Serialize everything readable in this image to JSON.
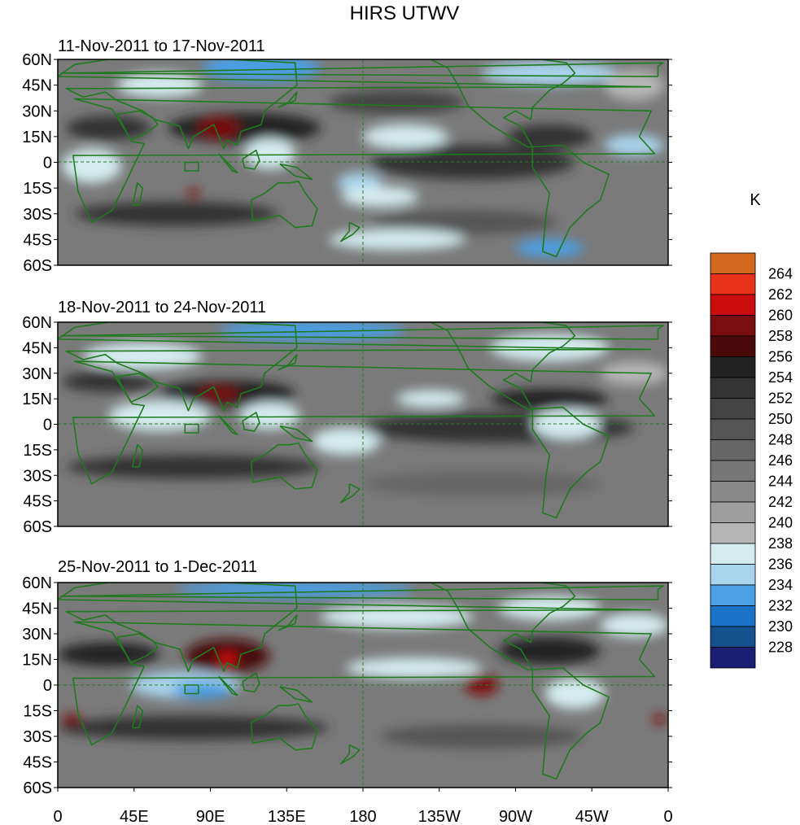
{
  "chart_data": {
    "type": "heatmap",
    "title": "HIRS UTWV",
    "units_label": "K",
    "x_ticks": [
      "0",
      "45E",
      "90E",
      "135E",
      "180",
      "135W",
      "90W",
      "45W",
      "0"
    ],
    "y_ticks": [
      "60N",
      "45N",
      "30N",
      "15N",
      "0",
      "15S",
      "30S",
      "45S",
      "60S"
    ],
    "xlim": [
      0,
      360
    ],
    "ylim": [
      -60,
      60
    ],
    "colorbar": {
      "levels": [
        "228",
        "230",
        "232",
        "234",
        "236",
        "238",
        "240",
        "242",
        "244",
        "246",
        "248",
        "250",
        "252",
        "254",
        "256",
        "258",
        "260",
        "262",
        "264"
      ],
      "colors": [
        "#1a1f73",
        "#15508f",
        "#1a73c6",
        "#4a9fe5",
        "#a8d4ec",
        "#d4ecef",
        "#b5b5b5",
        "#9e9e9e",
        "#888888",
        "#777777",
        "#666666",
        "#555555",
        "#444444",
        "#333333",
        "#222222",
        "#4a0a0a",
        "#7a0d0d",
        "#cc0d0d",
        "#e8321a",
        "#d2691e"
      ]
    },
    "panels": [
      {
        "label": "11-Nov-2011 to 17-Nov-2011",
        "features": [
          {
            "lon": 120,
            "lat": 55,
            "w": 70,
            "h": 16,
            "value": 232
          },
          {
            "lon": 290,
            "lat": 52,
            "w": 80,
            "h": 14,
            "value": 235
          },
          {
            "lon": 110,
            "lat": 20,
            "w": 90,
            "h": 18,
            "value": 254
          },
          {
            "lon": 95,
            "lat": 20,
            "w": 25,
            "h": 12,
            "value": 258
          },
          {
            "lon": 30,
            "lat": 20,
            "w": 50,
            "h": 14,
            "value": 252
          },
          {
            "lon": 20,
            "lat": -2,
            "w": 35,
            "h": 20,
            "value": 237
          },
          {
            "lon": 125,
            "lat": 5,
            "w": 30,
            "h": 18,
            "value": 237
          },
          {
            "lon": 178,
            "lat": -12,
            "w": 26,
            "h": 12,
            "value": 234
          },
          {
            "lon": 190,
            "lat": -20,
            "w": 45,
            "h": 12,
            "value": 237
          },
          {
            "lon": 205,
            "lat": 15,
            "w": 50,
            "h": 14,
            "value": 237
          },
          {
            "lon": 245,
            "lat": 0,
            "w": 120,
            "h": 20,
            "value": 252
          },
          {
            "lon": 200,
            "lat": 35,
            "w": 80,
            "h": 14,
            "value": 250
          },
          {
            "lon": 290,
            "lat": 15,
            "w": 50,
            "h": 14,
            "value": 252
          },
          {
            "lon": 340,
            "lat": 10,
            "w": 35,
            "h": 12,
            "value": 234
          },
          {
            "lon": 70,
            "lat": -30,
            "w": 120,
            "h": 14,
            "value": 252
          },
          {
            "lon": 240,
            "lat": -35,
            "w": 110,
            "h": 14,
            "value": 248
          },
          {
            "lon": 200,
            "lat": -45,
            "w": 80,
            "h": 12,
            "value": 237
          },
          {
            "lon": 290,
            "lat": -50,
            "w": 40,
            "h": 10,
            "value": 233
          },
          {
            "lon": 80,
            "lat": -18,
            "w": 8,
            "h": 5,
            "value": 258
          },
          {
            "lon": 60,
            "lat": 45,
            "w": 50,
            "h": 14,
            "value": 237
          },
          {
            "lon": 340,
            "lat": 45,
            "w": 35,
            "h": 18,
            "value": 238
          }
        ]
      },
      {
        "label": "18-Nov-2011 to 24-Nov-2011",
        "features": [
          {
            "lon": 150,
            "lat": 55,
            "w": 110,
            "h": 12,
            "value": 232
          },
          {
            "lon": 100,
            "lat": 18,
            "w": 80,
            "h": 16,
            "value": 254
          },
          {
            "lon": 95,
            "lat": 18,
            "w": 25,
            "h": 8,
            "value": 258
          },
          {
            "lon": 60,
            "lat": 5,
            "w": 60,
            "h": 18,
            "value": 237
          },
          {
            "lon": 125,
            "lat": 5,
            "w": 35,
            "h": 16,
            "value": 237
          },
          {
            "lon": 170,
            "lat": -10,
            "w": 40,
            "h": 16,
            "value": 236
          },
          {
            "lon": 260,
            "lat": -2,
            "w": 160,
            "h": 18,
            "value": 252
          },
          {
            "lon": 220,
            "lat": 15,
            "w": 40,
            "h": 10,
            "value": 237
          },
          {
            "lon": 290,
            "lat": 15,
            "w": 70,
            "h": 12,
            "value": 254
          },
          {
            "lon": 300,
            "lat": 0,
            "w": 40,
            "h": 18,
            "value": 237
          },
          {
            "lon": 80,
            "lat": -25,
            "w": 150,
            "h": 14,
            "value": 252
          },
          {
            "lon": 250,
            "lat": -35,
            "w": 140,
            "h": 16,
            "value": 246
          },
          {
            "lon": 290,
            "lat": 45,
            "w": 70,
            "h": 16,
            "value": 237
          },
          {
            "lon": 50,
            "lat": 40,
            "w": 70,
            "h": 16,
            "value": 237
          },
          {
            "lon": 30,
            "lat": 25,
            "w": 55,
            "h": 12,
            "value": 252
          },
          {
            "lon": 340,
            "lat": 30,
            "w": 40,
            "h": 14,
            "value": 238
          }
        ]
      },
      {
        "label": "25-Nov-2011 to 1-Dec-2011",
        "features": [
          {
            "lon": 140,
            "lat": 56,
            "w": 140,
            "h": 10,
            "value": 232
          },
          {
            "lon": 100,
            "lat": 17,
            "w": 50,
            "h": 20,
            "value": 256
          },
          {
            "lon": 100,
            "lat": 15,
            "w": 12,
            "h": 8,
            "value": 260
          },
          {
            "lon": 30,
            "lat": 18,
            "w": 60,
            "h": 14,
            "value": 254
          },
          {
            "lon": 75,
            "lat": 0,
            "w": 65,
            "h": 16,
            "value": 235
          },
          {
            "lon": 85,
            "lat": -3,
            "w": 35,
            "h": 10,
            "value": 233
          },
          {
            "lon": 210,
            "lat": 10,
            "w": 80,
            "h": 12,
            "value": 237
          },
          {
            "lon": 250,
            "lat": 0,
            "w": 20,
            "h": 12,
            "value": 258
          },
          {
            "lon": 290,
            "lat": 20,
            "w": 60,
            "h": 16,
            "value": 254
          },
          {
            "lon": 305,
            "lat": -5,
            "w": 35,
            "h": 18,
            "value": 237
          },
          {
            "lon": 80,
            "lat": -25,
            "w": 160,
            "h": 14,
            "value": 252
          },
          {
            "lon": 250,
            "lat": -30,
            "w": 120,
            "h": 14,
            "value": 248
          },
          {
            "lon": 8,
            "lat": -20,
            "w": 12,
            "h": 6,
            "value": 258
          },
          {
            "lon": 355,
            "lat": -20,
            "w": 8,
            "h": 6,
            "value": 258
          },
          {
            "lon": 200,
            "lat": 40,
            "w": 90,
            "h": 14,
            "value": 237
          },
          {
            "lon": 290,
            "lat": 45,
            "w": 60,
            "h": 14,
            "value": 237
          },
          {
            "lon": 340,
            "lat": 35,
            "w": 40,
            "h": 14,
            "value": 237
          }
        ]
      }
    ]
  }
}
